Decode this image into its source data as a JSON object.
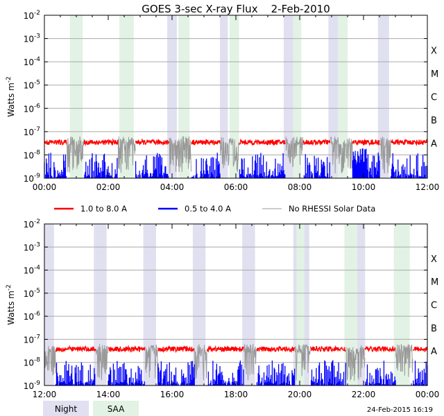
{
  "chart_data": {
    "type": "line",
    "title": "GOES 3-sec X-ray Flux    2-Feb-2010",
    "ylabel": "Watts m",
    "ylabel_exp": "-2",
    "y_scale": "log",
    "ylim": [
      1e-09,
      0.01
    ],
    "y_ticks": [
      {
        "base": "10",
        "exp": "-2"
      },
      {
        "base": "10",
        "exp": "-3"
      },
      {
        "base": "10",
        "exp": "-4"
      },
      {
        "base": "10",
        "exp": "-5"
      },
      {
        "base": "10",
        "exp": "-6"
      },
      {
        "base": "10",
        "exp": "-7"
      },
      {
        "base": "10",
        "exp": "-8"
      },
      {
        "base": "10",
        "exp": "-9"
      }
    ],
    "flare_classes": [
      "X",
      "M",
      "C",
      "B",
      "A"
    ],
    "grid": true,
    "legend_position": "between-panels",
    "legend": [
      {
        "label": "1.0 to 8.0 A",
        "color": "#ff0000"
      },
      {
        "label": "0.5 to 4.0 A",
        "color": "#0000ff"
      },
      {
        "label": "No RHESSI Solar Data",
        "color": "#999999"
      }
    ],
    "band_legend": [
      {
        "label": "Night",
        "color": "#e0e0f0"
      },
      {
        "label": "SAA",
        "color": "#e2f2e4"
      }
    ],
    "footer": "24-Feb-2015 16:19",
    "colors": {
      "long": "#ff0000",
      "short": "#0000ff",
      "gap": "#999999",
      "night": "#e0e0f0",
      "saa": "#e2f2e4"
    },
    "panels": [
      {
        "id": "panel-1",
        "xlim": [
          0,
          12
        ],
        "x_tick_labels": [
          "00:00",
          "02:00",
          "04:00",
          "06:00",
          "08:00",
          "10:00",
          "12:00"
        ],
        "night": [
          [
            3.85,
            4.15
          ],
          [
            5.5,
            5.75
          ],
          [
            7.5,
            7.8
          ],
          [
            8.9,
            9.2
          ],
          [
            10.45,
            10.8
          ]
        ],
        "saa": [
          [
            0.8,
            1.2
          ],
          [
            2.35,
            2.8
          ],
          [
            4.2,
            4.55
          ],
          [
            5.8,
            6.1
          ],
          [
            7.8,
            8.05
          ],
          [
            9.2,
            9.5
          ]
        ],
        "gray": [
          [
            0.7,
            1.25
          ],
          [
            2.3,
            2.85
          ],
          [
            3.9,
            4.6
          ],
          [
            5.5,
            6.1
          ],
          [
            7.55,
            8.1
          ],
          [
            8.95,
            9.65
          ],
          [
            10.5,
            10.85
          ]
        ],
        "long_base": 3.5e-08,
        "short_base": 1.5e-09,
        "short_raised": [
          [
            9.3,
            10.1
          ]
        ]
      },
      {
        "id": "panel-2",
        "xlim": [
          12,
          24
        ],
        "x_tick_labels": [
          "12:00",
          "14:00",
          "16:00",
          "18:00",
          "20:00",
          "22:00",
          "00:00"
        ],
        "night": [
          [
            12.0,
            12.3
          ],
          [
            13.55,
            13.95
          ],
          [
            15.1,
            15.5
          ],
          [
            16.65,
            17.05
          ],
          [
            18.2,
            18.6
          ],
          [
            19.8,
            20.3
          ],
          [
            21.8,
            22.05
          ]
        ],
        "saa": [
          [
            19.9,
            20.15
          ],
          [
            21.4,
            21.8
          ],
          [
            22.95,
            23.45
          ]
        ],
        "gray": [
          [
            12.0,
            12.35
          ],
          [
            13.6,
            14.0
          ],
          [
            15.15,
            15.55
          ],
          [
            16.7,
            17.1
          ],
          [
            18.25,
            18.65
          ],
          [
            19.85,
            20.35
          ],
          [
            21.45,
            22.05
          ],
          [
            23.0,
            23.55
          ]
        ],
        "long_base": 3.8e-08,
        "short_base": 1.5e-09,
        "short_raised": []
      }
    ]
  }
}
